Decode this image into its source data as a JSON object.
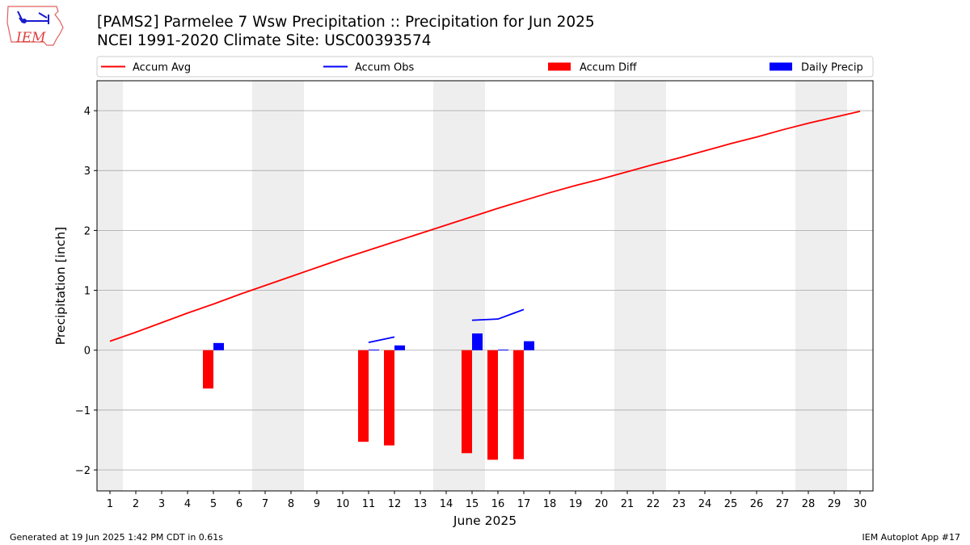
{
  "title_line1": "[PAMS2] Parmelee 7 Wsw Precipitation :: Precipitation for Jun 2025",
  "title_line2": "NCEI 1991-2020 Climate Site: USC00393574",
  "logo_text": "IEM",
  "footer_left": "Generated at 19 Jun 2025 1:42 PM CDT in 0.61s",
  "footer_right": "IEM Autoplot App #17",
  "colors": {
    "accum_avg": "#ff0000",
    "accum_obs": "#0000ff",
    "accum_diff": "#ff0000",
    "daily_precip": "#0000ff",
    "weekend_shade": "#eeeeee",
    "grid": "#b0b0b0"
  },
  "chart_data": {
    "type": "bar+line",
    "xlabel": "June 2025",
    "ylabel": "Precipitation [inch]",
    "xlim": [
      0.5,
      30.5
    ],
    "ylim": [
      -2.35,
      4.5
    ],
    "y_ticks": [
      -2,
      -1,
      0,
      1,
      2,
      3,
      4
    ],
    "y_tick_labels": [
      "−2",
      "−1",
      "0",
      "1",
      "2",
      "3",
      "4"
    ],
    "x_ticks": [
      1,
      2,
      3,
      4,
      5,
      6,
      7,
      8,
      9,
      10,
      11,
      12,
      13,
      14,
      15,
      16,
      17,
      18,
      19,
      20,
      21,
      22,
      23,
      24,
      25,
      26,
      27,
      28,
      29,
      30
    ],
    "x_tick_labels": [
      "1",
      "2",
      "3",
      "4",
      "5",
      "6",
      "7",
      "8",
      "9",
      "10",
      "11",
      "12",
      "13",
      "14",
      "15",
      "16",
      "17",
      "18",
      "19",
      "20",
      "21",
      "22",
      "23",
      "24",
      "25",
      "26",
      "27",
      "28",
      "29",
      "30"
    ],
    "grid": "y",
    "legend_position": "top",
    "legend": [
      {
        "label": "Accum Avg",
        "kind": "line",
        "color": "#ff0000"
      },
      {
        "label": "Accum Obs",
        "kind": "line",
        "color": "#0000ff"
      },
      {
        "label": "Accum Diff",
        "kind": "bar",
        "color": "#ff0000"
      },
      {
        "label": "Daily Precip",
        "kind": "bar",
        "color": "#0000ff"
      }
    ],
    "weekend_spans": [
      [
        0.5,
        1.5
      ],
      [
        6.5,
        8.5
      ],
      [
        13.5,
        15.5
      ],
      [
        20.5,
        22.5
      ],
      [
        27.5,
        29.5
      ]
    ],
    "accum_avg": {
      "days": [
        1,
        2,
        3,
        4,
        5,
        6,
        7,
        8,
        9,
        10,
        11,
        12,
        13,
        14,
        15,
        16,
        17,
        18,
        19,
        20,
        21,
        22,
        23,
        24,
        25,
        26,
        27,
        28,
        29,
        30
      ],
      "values": [
        0.15,
        0.3,
        0.46,
        0.62,
        0.77,
        0.93,
        1.08,
        1.23,
        1.38,
        1.53,
        1.67,
        1.81,
        1.95,
        2.09,
        2.23,
        2.37,
        2.5,
        2.63,
        2.75,
        2.86,
        2.98,
        3.1,
        3.21,
        3.33,
        3.45,
        3.56,
        3.68,
        3.79,
        3.89,
        3.99
      ]
    },
    "accum_obs_segments": [
      {
        "days": [
          11,
          12
        ],
        "values": [
          0.13,
          0.22
        ]
      },
      {
        "days": [
          15,
          16,
          17
        ],
        "values": [
          0.5,
          0.52,
          0.68
        ]
      }
    ],
    "accum_diff": {
      "days": [
        5,
        11,
        12,
        15,
        16,
        17
      ],
      "values": [
        -0.64,
        -1.53,
        -1.59,
        -1.72,
        -1.83,
        -1.82
      ]
    },
    "daily_precip": {
      "days": [
        5,
        11,
        12,
        15,
        16,
        17
      ],
      "values": [
        0.12,
        0.01,
        0.08,
        0.28,
        0.01,
        0.15
      ]
    }
  }
}
